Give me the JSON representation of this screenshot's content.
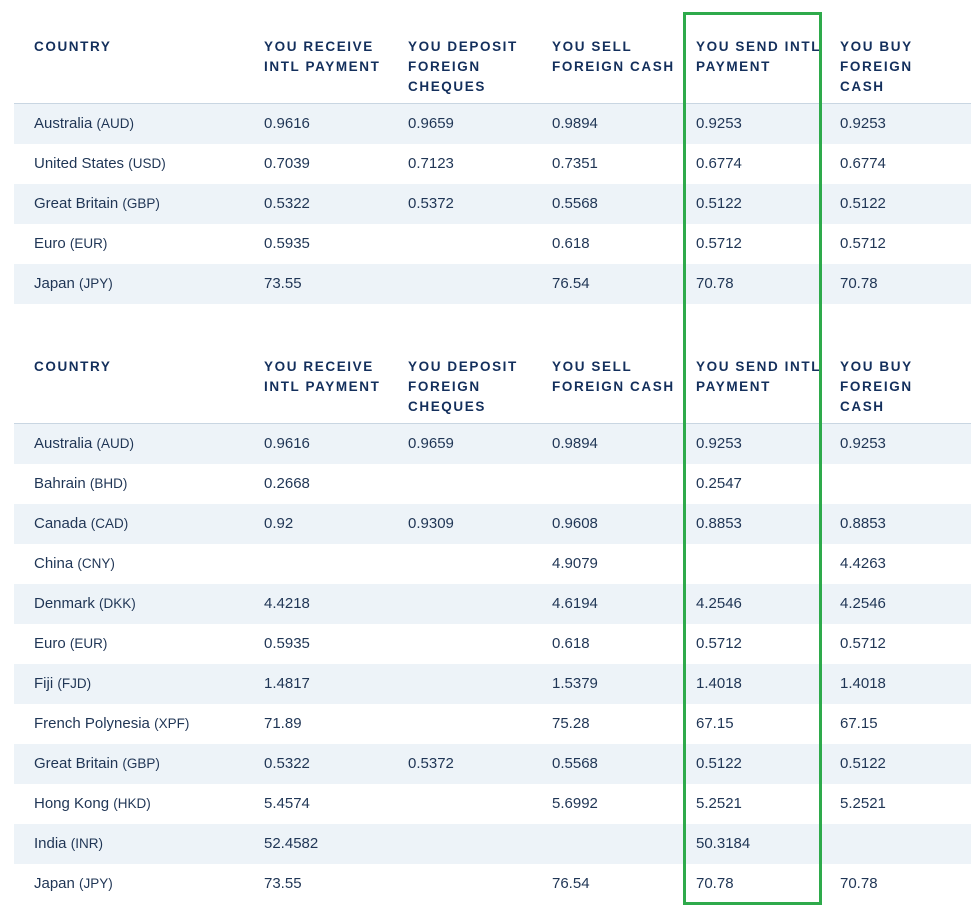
{
  "columns": [
    [
      "COUNTRY"
    ],
    [
      "YOU RECEIVE",
      "INTL PAYMENT"
    ],
    [
      "YOU DEPOSIT",
      "FOREIGN",
      "CHEQUES"
    ],
    [
      "YOU SELL",
      "FOREIGN CASH"
    ],
    [
      "YOU SEND INTL",
      "PAYMENT"
    ],
    [
      "YOU BUY",
      "FOREIGN",
      "CASH"
    ]
  ],
  "tables": [
    {
      "rows": [
        {
          "country": "Australia",
          "code": "(AUD)",
          "receive": "0.9616",
          "deposit": "0.9659",
          "sell": "0.9894",
          "send": "0.9253",
          "buy": "0.9253"
        },
        {
          "country": "United States",
          "code": "(USD)",
          "receive": "0.7039",
          "deposit": "0.7123",
          "sell": "0.7351",
          "send": "0.6774",
          "buy": "0.6774"
        },
        {
          "country": "Great Britain",
          "code": "(GBP)",
          "receive": "0.5322",
          "deposit": "0.5372",
          "sell": "0.5568",
          "send": "0.5122",
          "buy": "0.5122"
        },
        {
          "country": "Euro",
          "code": "(EUR)",
          "receive": "0.5935",
          "deposit": "",
          "sell": "0.618",
          "send": "0.5712",
          "buy": "0.5712"
        },
        {
          "country": "Japan",
          "code": "(JPY)",
          "receive": "73.55",
          "deposit": "",
          "sell": "76.54",
          "send": "70.78",
          "buy": "70.78"
        }
      ]
    },
    {
      "rows": [
        {
          "country": "Australia",
          "code": "(AUD)",
          "receive": "0.9616",
          "deposit": "0.9659",
          "sell": "0.9894",
          "send": "0.9253",
          "buy": "0.9253"
        },
        {
          "country": "Bahrain",
          "code": "(BHD)",
          "receive": "0.2668",
          "deposit": "",
          "sell": "",
          "send": "0.2547",
          "buy": ""
        },
        {
          "country": "Canada",
          "code": "(CAD)",
          "receive": "0.92",
          "deposit": "0.9309",
          "sell": "0.9608",
          "send": "0.8853",
          "buy": "0.8853"
        },
        {
          "country": "China",
          "code": "(CNY)",
          "receive": "",
          "deposit": "",
          "sell": "4.9079",
          "send": "",
          "buy": "4.4263"
        },
        {
          "country": "Denmark",
          "code": "(DKK)",
          "receive": "4.4218",
          "deposit": "",
          "sell": "4.6194",
          "send": "4.2546",
          "buy": "4.2546"
        },
        {
          "country": "Euro",
          "code": "(EUR)",
          "receive": "0.5935",
          "deposit": "",
          "sell": "0.618",
          "send": "0.5712",
          "buy": "0.5712"
        },
        {
          "country": "Fiji",
          "code": "(FJD)",
          "receive": "1.4817",
          "deposit": "",
          "sell": "1.5379",
          "send": "1.4018",
          "buy": "1.4018"
        },
        {
          "country": "French Polynesia",
          "code": "(XPF)",
          "receive": "71.89",
          "deposit": "",
          "sell": "75.28",
          "send": "67.15",
          "buy": "67.15"
        },
        {
          "country": "Great Britain",
          "code": "(GBP)",
          "receive": "0.5322",
          "deposit": "0.5372",
          "sell": "0.5568",
          "send": "0.5122",
          "buy": "0.5122"
        },
        {
          "country": "Hong Kong",
          "code": "(HKD)",
          "receive": "5.4574",
          "deposit": "",
          "sell": "5.6992",
          "send": "5.2521",
          "buy": "5.2521"
        },
        {
          "country": "India",
          "code": "(INR)",
          "receive": "52.4582",
          "deposit": "",
          "sell": "",
          "send": "50.3184",
          "buy": ""
        },
        {
          "country": "Japan",
          "code": "(JPY)",
          "receive": "73.55",
          "deposit": "",
          "sell": "76.54",
          "send": "70.78",
          "buy": "70.78"
        }
      ]
    }
  ],
  "colors": {
    "text": "#1f3555",
    "header_text": "#132f5c",
    "row_shade": "#edf3f8",
    "highlight": "#2eaa4b"
  }
}
